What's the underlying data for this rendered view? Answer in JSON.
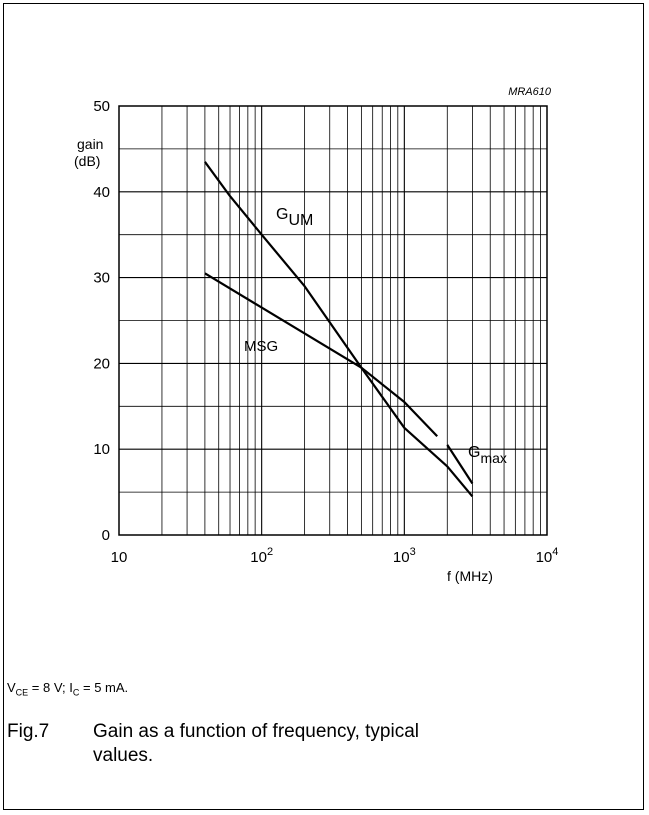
{
  "chart_data": {
    "type": "line",
    "code": "MRA610",
    "xlabel": "f (MHz)",
    "ylabel_line1": "gain",
    "ylabel_line2": "(dB)",
    "xscale": "log",
    "xlim": [
      10,
      10000
    ],
    "ylim": [
      0,
      50
    ],
    "grid": true,
    "x_ticks": [
      {
        "base": "10",
        "exp": ""
      },
      {
        "base": "10",
        "exp": "2"
      },
      {
        "base": "10",
        "exp": "3"
      },
      {
        "base": "10",
        "exp": "4"
      }
    ],
    "y_ticks": [
      "0",
      "10",
      "20",
      "30",
      "40",
      "50"
    ],
    "series": [
      {
        "name": "G",
        "sub": "UM",
        "x": [
          40,
          60,
          100,
          200,
          500,
          1000,
          2000,
          3000
        ],
        "y": [
          43.5,
          39.5,
          35.0,
          29.0,
          19.5,
          12.5,
          8.0,
          4.5
        ]
      },
      {
        "name": "MSG",
        "sub": "",
        "x": [
          40,
          100,
          200,
          500,
          1000,
          1700
        ],
        "y": [
          30.5,
          26.5,
          23.5,
          19.5,
          15.5,
          11.5
        ]
      },
      {
        "name": "G",
        "sub": "max",
        "x": [
          2000,
          3000
        ],
        "y": [
          10.5,
          6.0
        ]
      }
    ]
  },
  "conditions": {
    "v": "V",
    "v_sub": "CE",
    "v_val": " = 8 V; I",
    "i_sub": "C",
    "i_val": " = 5 mA."
  },
  "caption": {
    "fig": "Fig.7",
    "text": "Gain as a function of frequency, typical values."
  }
}
